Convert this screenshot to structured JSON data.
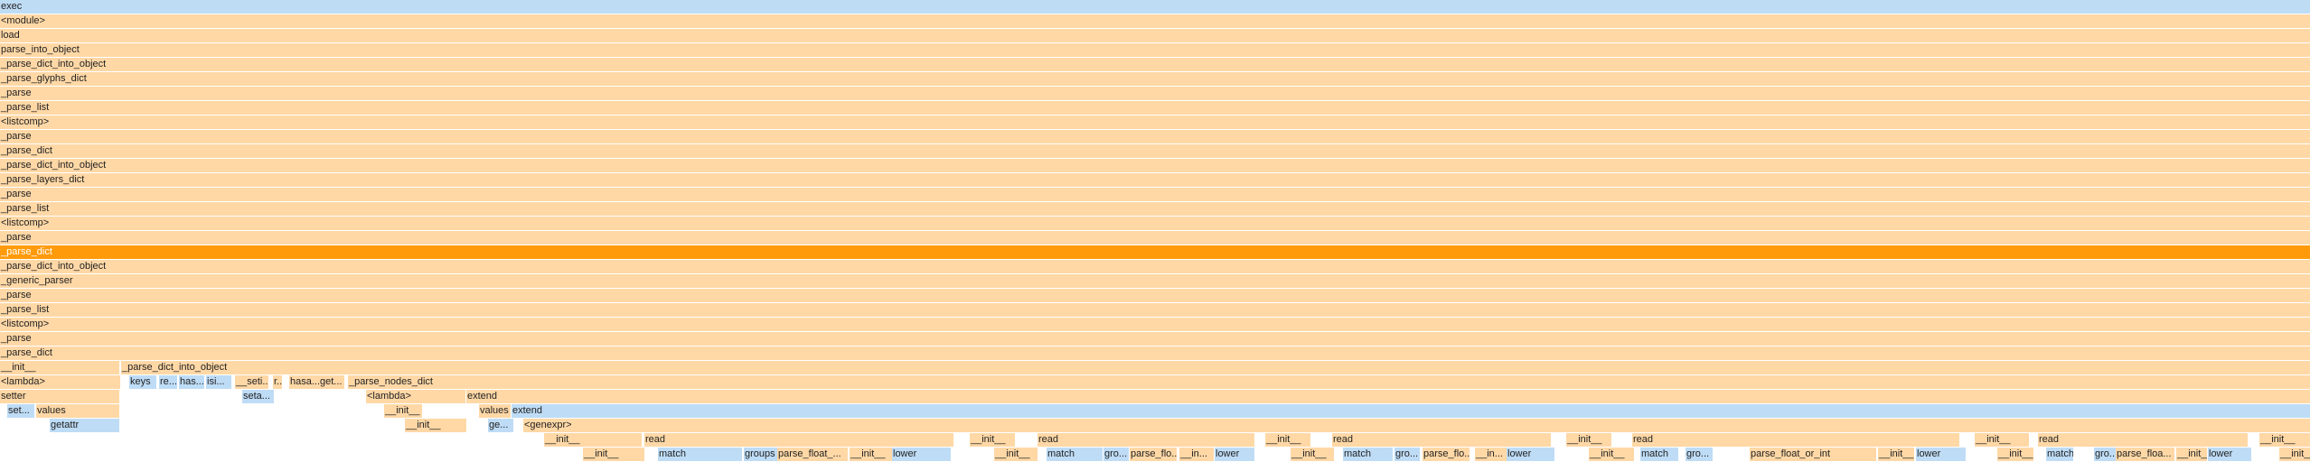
{
  "flamegraph": {
    "colors": {
      "python": "#ffd8a6",
      "native": "#bedcf6",
      "selected": "#ff9a0a",
      "root": "#bfdcf5"
    },
    "stack": [
      "exec",
      "<module>",
      "load",
      "parse_into_object",
      "_parse_dict_into_object",
      "_parse_glyphs_dict",
      "_parse",
      "_parse_list",
      "<listcomp>",
      "_parse",
      "_parse_dict",
      "_parse_dict_into_object",
      "_parse_layers_dict",
      "_parse",
      "_parse_list",
      "<listcomp>",
      "_parse",
      "_parse_dict",
      "_parse_dict_into_object",
      "_generic_parser",
      "_parse",
      "_parse_list",
      "<listcomp>",
      "_parse",
      "_parse_dict"
    ],
    "selected_index": 17,
    "frames": [
      {
        "l": "__init__",
        "d": 25
      },
      {
        "l": "_parse_dict_into_object",
        "d": 25
      },
      {
        "l": "<lambda>",
        "d": 26
      },
      {
        "l": "keys",
        "d": 26
      },
      {
        "l": "re...",
        "d": 26
      },
      {
        "l": "has...",
        "d": 26
      },
      {
        "l": "isi...",
        "d": 26
      },
      {
        "l": "__seti...",
        "d": 26
      },
      {
        "l": "r...",
        "d": 26
      },
      {
        "l": "hasa...",
        "d": 26
      },
      {
        "l": "get...",
        "d": 26
      },
      {
        "l": "_parse_nodes_dict",
        "d": 26
      },
      {
        "l": "setter",
        "d": 27
      },
      {
        "l": "seta...",
        "d": 27
      },
      {
        "l": "<lambda>",
        "d": 27
      },
      {
        "l": "extend",
        "d": 27
      },
      {
        "l": "set...",
        "d": 28
      },
      {
        "l": "values",
        "d": 28
      },
      {
        "l": "__init__",
        "d": 28
      },
      {
        "l": "values",
        "d": 28
      },
      {
        "l": "extend",
        "d": 28
      },
      {
        "l": "getattr",
        "d": 29
      },
      {
        "l": "__init__",
        "d": 29
      },
      {
        "l": "ge...",
        "d": 29
      },
      {
        "l": "<genexpr>",
        "d": 29
      },
      {
        "l": "__init__",
        "d": 30
      },
      {
        "l": "read",
        "d": 30
      },
      {
        "l": "__init__",
        "d": 30
      },
      {
        "l": "read",
        "d": 30
      },
      {
        "l": "__init__",
        "d": 30
      },
      {
        "l": "read",
        "d": 30
      },
      {
        "l": "__init__",
        "d": 30
      },
      {
        "l": "read",
        "d": 30
      },
      {
        "l": "__init__",
        "d": 30
      },
      {
        "l": "read",
        "d": 30
      },
      {
        "l": "__init__",
        "d": 30
      },
      {
        "l": "__init__",
        "d": 31
      },
      {
        "l": "match",
        "d": 31
      },
      {
        "l": "groups",
        "d": 31
      },
      {
        "l": "parse_float_...",
        "d": 31
      },
      {
        "l": "__init__",
        "d": 31
      },
      {
        "l": "lower",
        "d": 31
      },
      {
        "l": "__init__",
        "d": 31
      },
      {
        "l": "match",
        "d": 31
      },
      {
        "l": "gro...",
        "d": 31
      },
      {
        "l": "parse_flo...",
        "d": 31
      },
      {
        "l": "__in...",
        "d": 31
      },
      {
        "l": "lower",
        "d": 31
      },
      {
        "l": "__init__",
        "d": 31
      },
      {
        "l": "match",
        "d": 31
      },
      {
        "l": "gro...",
        "d": 31
      },
      {
        "l": "parse_flo...",
        "d": 31
      },
      {
        "l": "__in...",
        "d": 31
      },
      {
        "l": "lower",
        "d": 31
      },
      {
        "l": "__init__",
        "d": 31
      },
      {
        "l": "match",
        "d": 31
      },
      {
        "l": "gro...",
        "d": 31
      },
      {
        "l": "parse_float_or_int",
        "d": 31
      },
      {
        "l": "__init__",
        "d": 31
      },
      {
        "l": "lower",
        "d": 31
      },
      {
        "l": "__init__",
        "d": 31
      },
      {
        "l": "match",
        "d": 31
      },
      {
        "l": "gro...",
        "d": 31
      },
      {
        "l": "parse_floa...",
        "d": 31
      },
      {
        "l": "__init__",
        "d": 31
      },
      {
        "l": "lower",
        "d": 31
      },
      {
        "l": "__init__",
        "d": 31
      }
    ]
  }
}
